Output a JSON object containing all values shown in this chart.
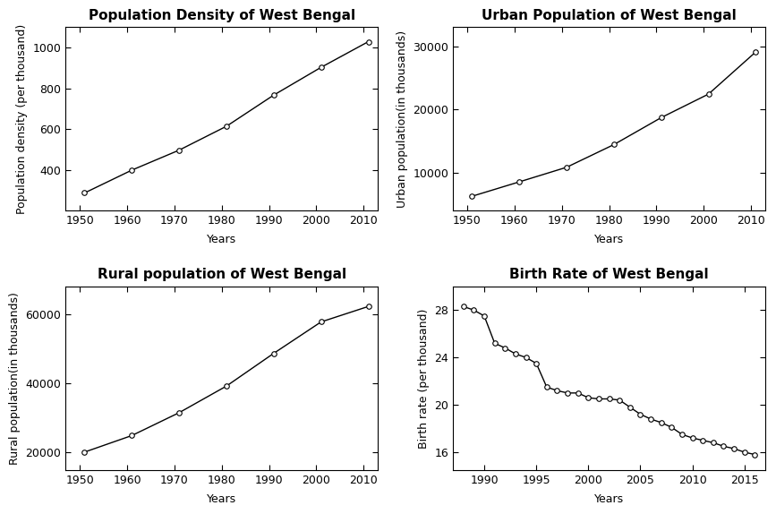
{
  "pop_density": {
    "title": "Population Density of West Bengal",
    "xlabel": "Years",
    "ylabel": "Population density (per thousand)",
    "x": [
      1951,
      1961,
      1971,
      1981,
      1991,
      2001,
      2011
    ],
    "y": [
      287,
      399,
      497,
      614,
      767,
      903,
      1029
    ],
    "ylim": [
      200,
      1100
    ],
    "yticks": [
      400,
      600,
      800,
      1000
    ],
    "xticks": [
      1950,
      1960,
      1970,
      1980,
      1990,
      2000,
      2010
    ],
    "xlim": [
      1947,
      2013
    ]
  },
  "urban_pop": {
    "title": "Urban Population of West Bengal",
    "xlabel": "Years",
    "ylabel": "Urban population(in thousands)",
    "x": [
      1951,
      1961,
      1971,
      1981,
      1991,
      2001,
      2011
    ],
    "y": [
      6280,
      8557,
      10861,
      14447,
      18709,
      22427,
      29093
    ],
    "ylim": [
      4000,
      33000
    ],
    "yticks": [
      10000,
      20000,
      30000
    ],
    "xticks": [
      1950,
      1960,
      1970,
      1980,
      1990,
      2000,
      2010
    ],
    "xlim": [
      1947,
      2013
    ]
  },
  "rural_pop": {
    "title": "Rural population of West Bengal",
    "xlabel": "Years",
    "ylabel": "Rural population(in thousands)",
    "x": [
      1951,
      1961,
      1971,
      1981,
      1991,
      2001,
      2011
    ],
    "y": [
      20155,
      24935,
      31540,
      39222,
      48678,
      57748,
      62214
    ],
    "ylim": [
      15000,
      68000
    ],
    "yticks": [
      20000,
      40000,
      60000
    ],
    "xticks": [
      1950,
      1960,
      1970,
      1980,
      1990,
      2000,
      2010
    ],
    "xlim": [
      1947,
      2013
    ]
  },
  "birth_rate": {
    "title": "Birth Rate of West Bengal",
    "xlabel": "Years",
    "ylabel": "Birth rate (per thousand)",
    "x": [
      1988,
      1989,
      1990,
      1991,
      1992,
      1993,
      1994,
      1995,
      1996,
      1997,
      1998,
      1999,
      2000,
      2001,
      2002,
      2003,
      2004,
      2005,
      2006,
      2007,
      2008,
      2009,
      2010,
      2011,
      2012,
      2013,
      2014,
      2015,
      2016
    ],
    "y": [
      28.3,
      28.0,
      27.5,
      25.2,
      24.8,
      24.3,
      24.0,
      23.5,
      21.5,
      21.2,
      21.0,
      21.0,
      20.6,
      20.5,
      20.5,
      20.4,
      19.8,
      19.2,
      18.8,
      18.5,
      18.1,
      17.5,
      17.2,
      17.0,
      16.8,
      16.5,
      16.3,
      16.0,
      15.8
    ],
    "ylim": [
      14.5,
      30
    ],
    "yticks": [
      16,
      20,
      24,
      28
    ],
    "xticks": [
      1990,
      1995,
      2000,
      2005,
      2010,
      2015
    ],
    "xlim": [
      1987,
      2017
    ]
  },
  "line_color": "#000000",
  "marker": "o",
  "marker_facecolor": "white",
  "marker_edgecolor": "#000000",
  "marker_size": 4,
  "marker_linewidth": 0.8,
  "linewidth": 1.0,
  "title_fontsize": 11,
  "label_fontsize": 9,
  "tick_fontsize": 9,
  "title_fontweight": "bold",
  "bg_color": "white"
}
